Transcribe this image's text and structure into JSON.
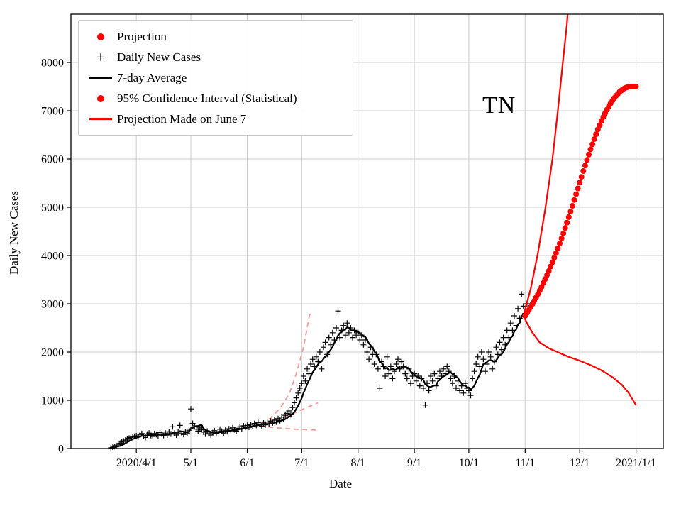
{
  "figure": {
    "background": "#ffffff"
  },
  "colors": {
    "red": "#ff0000",
    "black": "#000000",
    "faded_red": "#f59c9c",
    "grid": "#cccccc",
    "legend_border": "#c9c9c9"
  },
  "legend": {
    "position": "upper left",
    "items": [
      {
        "label": "Projection",
        "marker": "red-dot"
      },
      {
        "label": "Daily New Cases",
        "marker": "black-plus"
      },
      {
        "label": "7-day Average",
        "marker": "black-line"
      },
      {
        "label": "95% Confidence Interval (Statistical)",
        "marker": "red-dot"
      },
      {
        "label": "Projection Made on June 7",
        "marker": "red-line"
      }
    ]
  },
  "chart_data": {
    "type": "line+scatter",
    "title": "",
    "xlabel": "Date",
    "ylabel": "Daily New Cases",
    "x_unit": "days since 2020-04-01",
    "xlim": [
      -36,
      290
    ],
    "ylim": [
      0,
      9000
    ],
    "grid": true,
    "x_ticks": [
      {
        "day": 0,
        "label": "2020/4/1"
      },
      {
        "day": 30,
        "label": "5/1"
      },
      {
        "day": 61,
        "label": "6/1"
      },
      {
        "day": 91,
        "label": "7/1"
      },
      {
        "day": 122,
        "label": "8/1"
      },
      {
        "day": 153,
        "label": "9/1"
      },
      {
        "day": 183,
        "label": "10/1"
      },
      {
        "day": 214,
        "label": "11/1"
      },
      {
        "day": 244,
        "label": "12/1"
      },
      {
        "day": 275,
        "label": "2021/1/1"
      }
    ],
    "y_ticks": [
      0,
      1000,
      2000,
      3000,
      4000,
      5000,
      6000,
      7000,
      8000
    ],
    "annotation": {
      "text": "TN",
      "day": 204,
      "value": 7050
    },
    "series": [
      {
        "id": "daily",
        "name": "Daily New Cases",
        "style": "plus",
        "color": "#000000",
        "start_day": -14,
        "values": [
          15,
          25,
          40,
          60,
          85,
          110,
          135,
          155,
          175,
          195,
          215,
          230,
          240,
          255,
          265,
          240,
          290,
          310,
          260,
          230,
          300,
          320,
          270,
          250,
          310,
          290,
          260,
          330,
          300,
          270,
          320,
          280,
          350,
          300,
          450,
          320,
          280,
          340,
          480,
          310,
          290,
          350,
          320,
          380,
          820,
          520,
          470,
          400,
          360,
          430,
          390,
          340,
          300,
          360,
          320,
          280,
          330,
          370,
          310,
          350,
          400,
          360,
          320,
          380,
          350,
          410,
          370,
          430,
          390,
          360,
          420,
          450,
          410,
          470,
          440,
          480,
          440,
          500,
          460,
          520,
          480,
          540,
          500,
          460,
          530,
          490,
          550,
          510,
          570,
          530,
          590,
          550,
          620,
          580,
          650,
          610,
          690,
          730,
          780,
          700,
          850,
          950,
          1050,
          1150,
          1250,
          1350,
          1500,
          1400,
          1650,
          1550,
          1750,
          1850,
          1700,
          1900,
          1800,
          2000,
          1650,
          2100,
          2200,
          1950,
          2300,
          2150,
          2400,
          2250,
          2500,
          2850,
          2300,
          2450,
          2550,
          2350,
          2600,
          2400,
          2500,
          2300,
          2450,
          2350,
          2400,
          2250,
          2350,
          2150,
          2250,
          2000,
          1850,
          2100,
          1950,
          1750,
          1950,
          1650,
          1250,
          1800,
          1700,
          1500,
          1900,
          1550,
          1700,
          1450,
          1600,
          1750,
          1850,
          1650,
          1800,
          1700,
          1550,
          1450,
          1650,
          1350,
          1500,
          1550,
          1400,
          1500,
          1300,
          1450,
          1250,
          900,
          1350,
          1200,
          1500,
          1400,
          1550,
          1300,
          1450,
          1600,
          1500,
          1650,
          1550,
          1700,
          1600,
          1450,
          1350,
          1500,
          1250,
          1400,
          1200,
          1300,
          1150,
          1350,
          1250,
          1200,
          1100,
          1450,
          1600,
          1750,
          1900,
          1700,
          2000,
          1850,
          1600,
          1750,
          2000,
          1900,
          1650,
          1800,
          2100,
          1950,
          2200,
          2050,
          2300,
          2150,
          2450,
          2300,
          2600,
          2450,
          2750,
          2550,
          2900,
          2700,
          3200,
          2950,
          2800,
          3000
        ]
      },
      {
        "id": "avg7",
        "name": "7-day Average",
        "style": "line",
        "color": "#000000",
        "width": 2.2,
        "derived_from": "daily",
        "window": 7
      },
      {
        "id": "projection",
        "name": "Projection",
        "style": "dots",
        "color": "#ff0000",
        "start_day": 214,
        "values": [
          2750,
          2810,
          2870,
          2930,
          2995,
          3060,
          3130,
          3200,
          3275,
          3350,
          3430,
          3510,
          3595,
          3680,
          3770,
          3860,
          3955,
          4050,
          4150,
          4250,
          4355,
          4460,
          4570,
          4680,
          4795,
          4910,
          5030,
          5150,
          5270,
          5390,
          5510,
          5630,
          5750,
          5865,
          5980,
          6090,
          6200,
          6305,
          6410,
          6510,
          6610,
          6700,
          6790,
          6870,
          6950,
          7020,
          7090,
          7150,
          7210,
          7260,
          7310,
          7350,
          7390,
          7420,
          7450,
          7470,
          7485,
          7495,
          7500,
          7500,
          7500,
          7500
        ]
      },
      {
        "id": "ci_upper",
        "name": "95% Confidence Interval upper bound",
        "style": "line",
        "color": "#ff0000",
        "width": 2.2,
        "points": [
          [
            213,
            2750
          ],
          [
            217,
            3300
          ],
          [
            221,
            4050
          ],
          [
            225,
            4950
          ],
          [
            229,
            6000
          ],
          [
            232,
            7000
          ],
          [
            235,
            8100
          ],
          [
            237,
            8800
          ],
          [
            238,
            9300
          ]
        ]
      },
      {
        "id": "ci_lower",
        "name": "95% Confidence Interval lower bound",
        "style": "line",
        "color": "#ff0000",
        "width": 2.2,
        "points": [
          [
            213,
            2750
          ],
          [
            215,
            2600
          ],
          [
            218,
            2400
          ],
          [
            222,
            2200
          ],
          [
            227,
            2080
          ],
          [
            233,
            1980
          ],
          [
            238,
            1900
          ],
          [
            244,
            1820
          ],
          [
            250,
            1730
          ],
          [
            256,
            1620
          ],
          [
            262,
            1480
          ],
          [
            267,
            1330
          ],
          [
            271,
            1150
          ],
          [
            275,
            900
          ]
        ]
      },
      {
        "id": "june7_upper",
        "name": "Projection Made on June 7 upper bound",
        "style": "dashed",
        "color": "#f59c9c",
        "points": [
          [
            69,
            510
          ],
          [
            74,
            640
          ],
          [
            79,
            830
          ],
          [
            84,
            1120
          ],
          [
            88,
            1550
          ],
          [
            92,
            2100
          ],
          [
            95,
            2700
          ],
          [
            96,
            2850
          ]
        ]
      },
      {
        "id": "june7_central",
        "name": "Projection Made on June 7 central",
        "style": "dashed",
        "color": "#f59c9c",
        "points": [
          [
            68,
            490
          ],
          [
            74,
            550
          ],
          [
            80,
            630
          ],
          [
            86,
            720
          ],
          [
            92,
            820
          ],
          [
            97,
            900
          ],
          [
            100,
            950
          ]
        ]
      },
      {
        "id": "june7_lower",
        "name": "Projection Made on June 7 lower bound",
        "style": "dashed",
        "color": "#f59c9c",
        "points": [
          [
            68,
            470
          ],
          [
            74,
            440
          ],
          [
            80,
            420
          ],
          [
            88,
            400
          ],
          [
            95,
            390
          ],
          [
            100,
            380
          ]
        ]
      }
    ]
  }
}
